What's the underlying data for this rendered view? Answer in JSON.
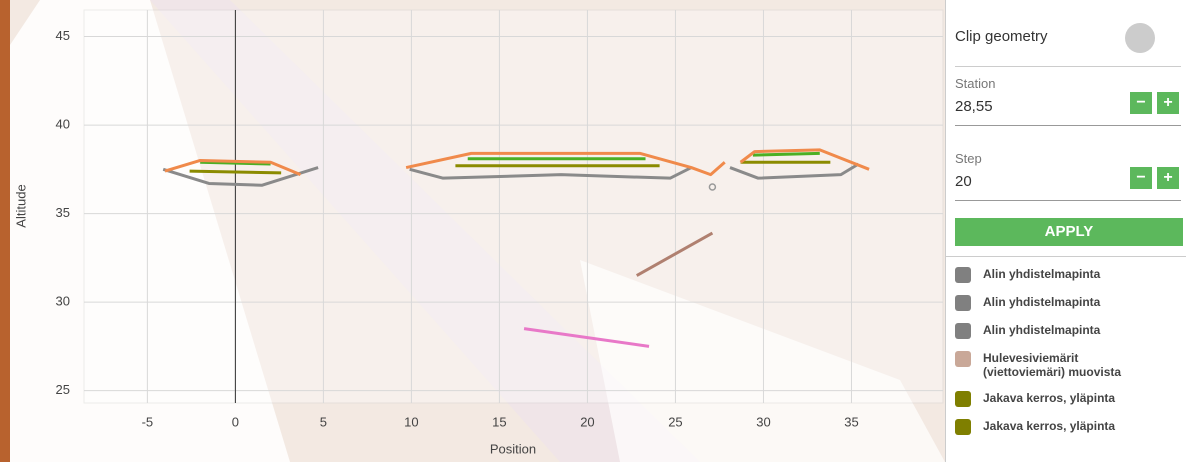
{
  "chart_data": {
    "type": "line",
    "x_label": "Position",
    "y_label": "Altitude",
    "xlim": [
      -8.6,
      40.2
    ],
    "ylim": [
      24.3,
      46.5
    ],
    "xticks": [
      -5,
      0,
      5,
      10,
      15,
      20,
      25,
      30,
      35
    ],
    "yticks": [
      25,
      30,
      35,
      40,
      45
    ],
    "grid": true,
    "series": [
      {
        "color": "#8a8a8a",
        "x": [
          -4.1,
          -1.5,
          1.5,
          4.7,
          null,
          9.9,
          11.8,
          18.5,
          24.7,
          25.9,
          null,
          28.1,
          29.7,
          34.4,
          35.4
        ],
        "values": [
          37.5,
          36.7,
          36.6,
          37.6,
          null,
          37.5,
          37.0,
          37.2,
          37.0,
          37.6,
          null,
          37.6,
          37.0,
          37.2,
          37.8
        ]
      },
      {
        "color": "#8b8b00",
        "x": [
          -2.6,
          2.6,
          null,
          12.5,
          24.1,
          null,
          28.7,
          33.8
        ],
        "values": [
          37.4,
          37.3,
          null,
          37.7,
          37.7,
          null,
          37.9,
          37.9
        ]
      },
      {
        "color": "#4caf24",
        "x": [
          -2.0,
          2.0,
          null,
          13.2,
          23.3,
          null,
          29.4,
          33.2
        ],
        "values": [
          37.9,
          37.8,
          null,
          38.1,
          38.1,
          null,
          38.3,
          38.4
        ]
      },
      {
        "color": "#f08a4b",
        "x": [
          -4.0,
          -2.0,
          2.0,
          3.7,
          null,
          9.7,
          13.4,
          23.0,
          25.9,
          27.0,
          27.8,
          null,
          28.7,
          29.5,
          33.2,
          36.0
        ],
        "values": [
          37.4,
          38.0,
          37.9,
          37.2,
          null,
          37.6,
          38.4,
          38.4,
          37.6,
          37.2,
          37.9,
          null,
          37.9,
          38.5,
          38.6,
          37.5
        ]
      },
      {
        "color": "#b08070",
        "x": [
          22.8,
          27.1
        ],
        "values": [
          31.5,
          33.9
        ]
      },
      {
        "color": "#e878c8",
        "x": [
          16.4,
          23.5
        ],
        "values": [
          28.5,
          27.5
        ]
      }
    ],
    "markers": {
      "color": "#999999",
      "x": [
        27.1
      ],
      "values": [
        36.5
      ]
    }
  },
  "panel": {
    "clip_label": "Clip geometry",
    "station_label": "Station",
    "station_value": "28,55",
    "step_label": "Step",
    "step_value": "20",
    "minus": "−",
    "plus": "+",
    "apply": "APPLY",
    "layers": [
      {
        "name": "Alin yhdistelmapinta",
        "color": "#808080"
      },
      {
        "name": "Alin yhdistelmapinta",
        "color": "#808080"
      },
      {
        "name": "Alin yhdistelmapinta",
        "color": "#808080"
      },
      {
        "name": "Hulevesiviemärit (viettoviemäri) muovista",
        "color": "#c9a898"
      },
      {
        "name": "Jakava kerros, yläpinta",
        "color": "#7f7f00"
      },
      {
        "name": "Jakava kerros, yläpinta",
        "color": "#7f7f00"
      }
    ]
  }
}
